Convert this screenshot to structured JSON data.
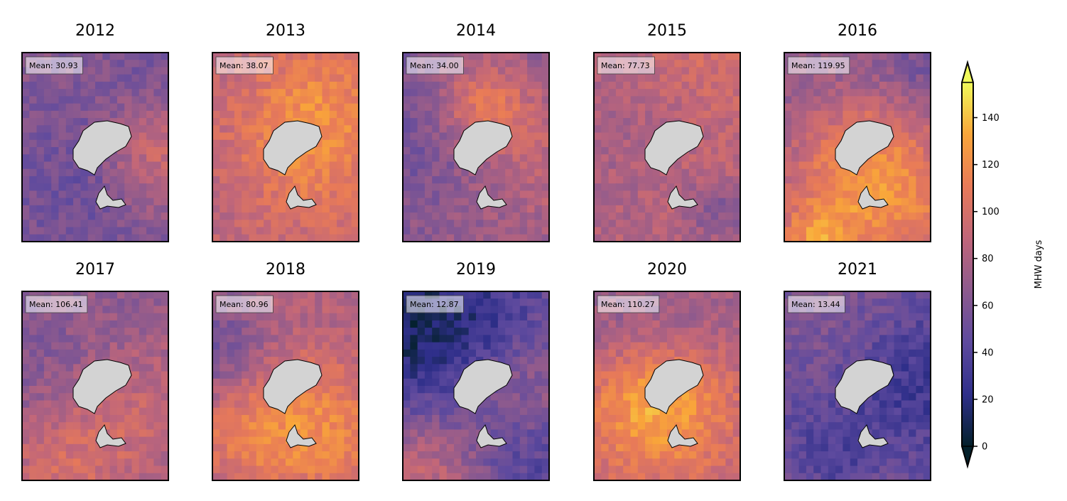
{
  "chart_data": {
    "type": "heatmap",
    "grid": {
      "rows": 2,
      "cols": 5
    },
    "panels": [
      {
        "title": "2012",
        "mean_label": "Mean: 30.93"
      },
      {
        "title": "2013",
        "mean_label": "Mean: 38.07"
      },
      {
        "title": "2014",
        "mean_label": "Mean: 34.00"
      },
      {
        "title": "2015",
        "mean_label": "Mean: 77.73"
      },
      {
        "title": "2016",
        "mean_label": "Mean: 119.95"
      },
      {
        "title": "2017",
        "mean_label": "Mean: 106.41"
      },
      {
        "title": "2018",
        "mean_label": "Mean: 80.96"
      },
      {
        "title": "2019",
        "mean_label": "Mean: 12.87"
      },
      {
        "title": "2020",
        "mean_label": "Mean: 110.27"
      },
      {
        "title": "2021",
        "mean_label": "Mean: 13.44"
      }
    ],
    "colorbar": {
      "label": "MHW days",
      "range": [
        0,
        155
      ],
      "ticks": [
        0,
        20,
        40,
        60,
        80,
        100,
        120,
        140
      ],
      "extend": "both",
      "colormap": [
        "#03202a",
        "#2f2f8a",
        "#5e4a9e",
        "#8d5a8e",
        "#c0667a",
        "#e87a58",
        "#f9a53a",
        "#f0f95a"
      ]
    },
    "land_color": "#d3d3d3"
  }
}
